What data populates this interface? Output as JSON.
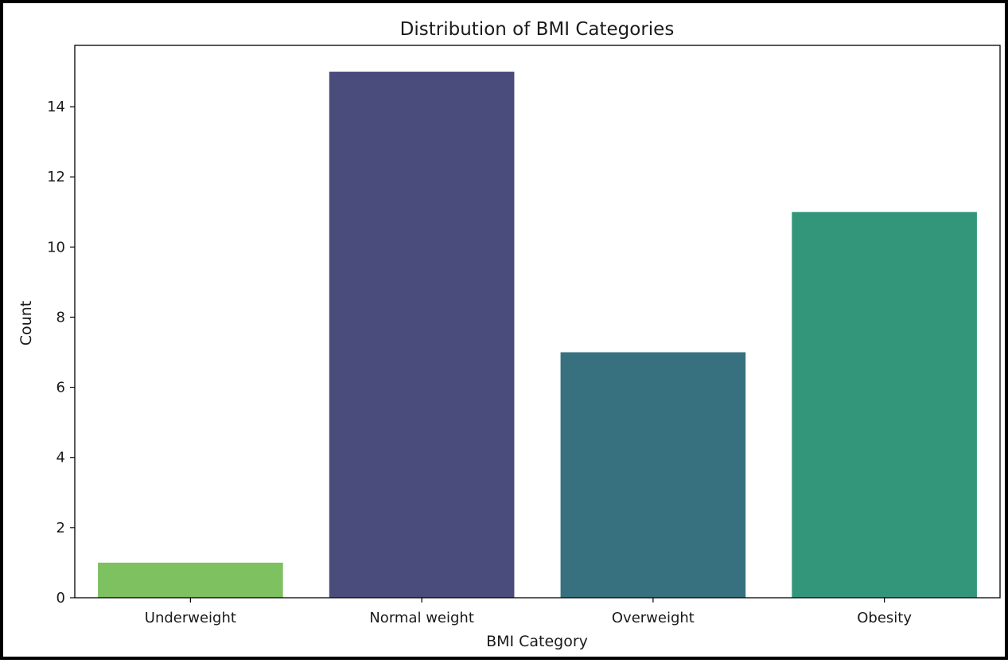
{
  "chart_data": {
    "type": "bar",
    "title": "Distribution of BMI Categories",
    "xlabel": "BMI Category",
    "ylabel": "Count",
    "categories": [
      "Underweight",
      "Normal weight",
      "Overweight",
      "Obesity"
    ],
    "values": [
      1,
      15,
      7,
      11
    ],
    "colors": [
      "#7dc160",
      "#4a4c7c",
      "#37717f",
      "#33967b"
    ],
    "ylim": [
      0,
      15.75
    ],
    "yticks": [
      0,
      2,
      4,
      6,
      8,
      10,
      12,
      14
    ],
    "grid": false,
    "legend": "none"
  }
}
